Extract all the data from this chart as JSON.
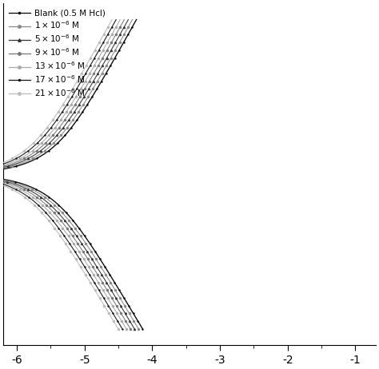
{
  "title": "",
  "xlabel": "",
  "ylabel": "",
  "xlim": [
    -6.2,
    -0.7
  ],
  "x_ticks": [
    -6,
    -5,
    -4,
    -3,
    -2,
    -1
  ],
  "legend_entries": [
    {
      "label": "Blank (0.5 M Hcl)",
      "color": "#000000",
      "marker": ".",
      "linestyle": "-",
      "markersize": 3
    },
    {
      "label": "$1 \\times 10^{-6}$ M",
      "color": "#888888",
      "marker": "o",
      "linestyle": "-",
      "markersize": 2.5
    },
    {
      "label": "$5 \\times 10^{-6}$ M",
      "color": "#333333",
      "marker": "^",
      "linestyle": "-",
      "markersize": 2.5
    },
    {
      "label": "$9 \\times 10^{-6}$ M",
      "color": "#777777",
      "marker": "o",
      "linestyle": "-",
      "markersize": 2.5
    },
    {
      "label": "$13 \\times 10^{-6}$ M",
      "color": "#aaaaaa",
      "marker": "o",
      "linestyle": "-",
      "markersize": 2.5
    },
    {
      "label": "$17 \\times 10^{-6}$ M",
      "color": "#111111",
      "marker": ".",
      "linestyle": "-",
      "markersize": 3
    },
    {
      "label": "$21 \\times 10^{-6}$ M",
      "color": "#bbbbbb",
      "marker": "o",
      "linestyle": "-",
      "markersize": 2.5
    }
  ],
  "curves": [
    {
      "icorr": -5.5,
      "ba": 0.3,
      "bc": 0.28,
      "di": 0.0,
      "color": "#000000",
      "marker": ".",
      "ms": 1.5,
      "lw": 1.0
    },
    {
      "icorr": -5.5,
      "ba": 0.3,
      "bc": 0.28,
      "di": 0.06,
      "color": "#888888",
      "marker": "o",
      "ms": 1.5,
      "lw": 0.8
    },
    {
      "icorr": -5.5,
      "ba": 0.3,
      "bc": 0.28,
      "di": 0.12,
      "color": "#333333",
      "marker": "^",
      "ms": 1.5,
      "lw": 0.8
    },
    {
      "icorr": -5.5,
      "ba": 0.3,
      "bc": 0.28,
      "di": 0.18,
      "color": "#777777",
      "marker": "o",
      "ms": 1.5,
      "lw": 0.8
    },
    {
      "icorr": -5.5,
      "ba": 0.3,
      "bc": 0.28,
      "di": 0.24,
      "color": "#aaaaaa",
      "marker": "o",
      "ms": 1.5,
      "lw": 0.8
    },
    {
      "icorr": -5.5,
      "ba": 0.3,
      "bc": 0.28,
      "di": 0.3,
      "color": "#111111",
      "marker": ".",
      "ms": 1.5,
      "lw": 0.8
    },
    {
      "icorr": -5.5,
      "ba": 0.3,
      "bc": 0.28,
      "di": 0.36,
      "color": "#bbbbbb",
      "marker": "o",
      "ms": 1.5,
      "lw": 0.8
    }
  ],
  "E_range": [
    -0.38,
    0.38
  ],
  "marker_step": 20
}
